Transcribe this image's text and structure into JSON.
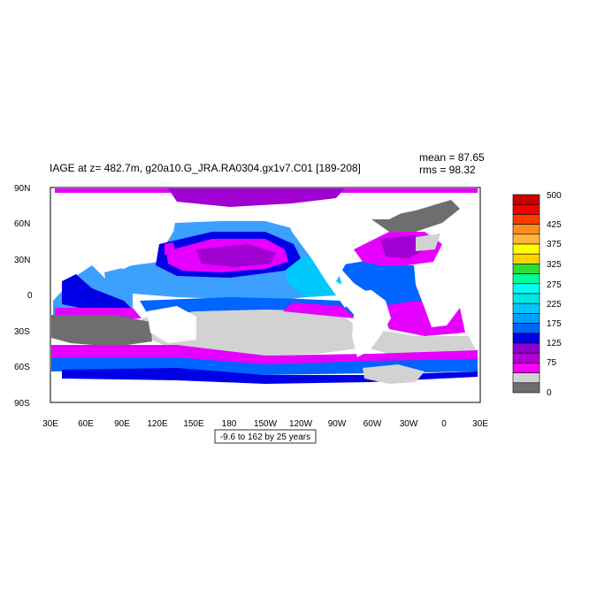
{
  "title": "IAGE at z= 482.7m, g20a10.G_JRA.RA0304.gx1v7.C01 [189-208]",
  "stats": {
    "mean": "mean = 87.65",
    "rms": "rms = 98.32"
  },
  "subtitle": "-9.6 to 162 by 25 years",
  "lat_labels": [
    "90N",
    "60N",
    "30N",
    "0",
    "30S",
    "60S",
    "90S"
  ],
  "lon_labels": [
    "30E",
    "60E",
    "90E",
    "120E",
    "150E",
    "180",
    "150W",
    "120W",
    "90W",
    "60W",
    "30W",
    "0",
    "30E"
  ],
  "legend": {
    "labels": [
      "500",
      "425",
      "375",
      "325",
      "275",
      "225",
      "175",
      "125",
      "75",
      "0"
    ],
    "colors": [
      "#c80000",
      "#f00000",
      "#ff3c00",
      "#ff8c1e",
      "#ffb43c",
      "#ffff00",
      "#ffd200",
      "#32dc32",
      "#00ff96",
      "#00fff0",
      "#00e6e6",
      "#00c8ff",
      "#00a0ff",
      "#0064ff",
      "#0000e6",
      "#8c00d2",
      "#b400d2",
      "#ff00ff",
      "#d2d2d2",
      "#6e6e6e"
    ]
  },
  "palette": {
    "land": "#ffffff",
    "gray_dark": "#6e6e6e",
    "gray_light": "#d2d2d2",
    "magenta": "#e600ff",
    "purple": "#a000d2",
    "blue_dark": "#0000e6",
    "blue_mid": "#0064ff",
    "blue_light": "#3ca0ff",
    "cyan": "#00c8ff"
  }
}
